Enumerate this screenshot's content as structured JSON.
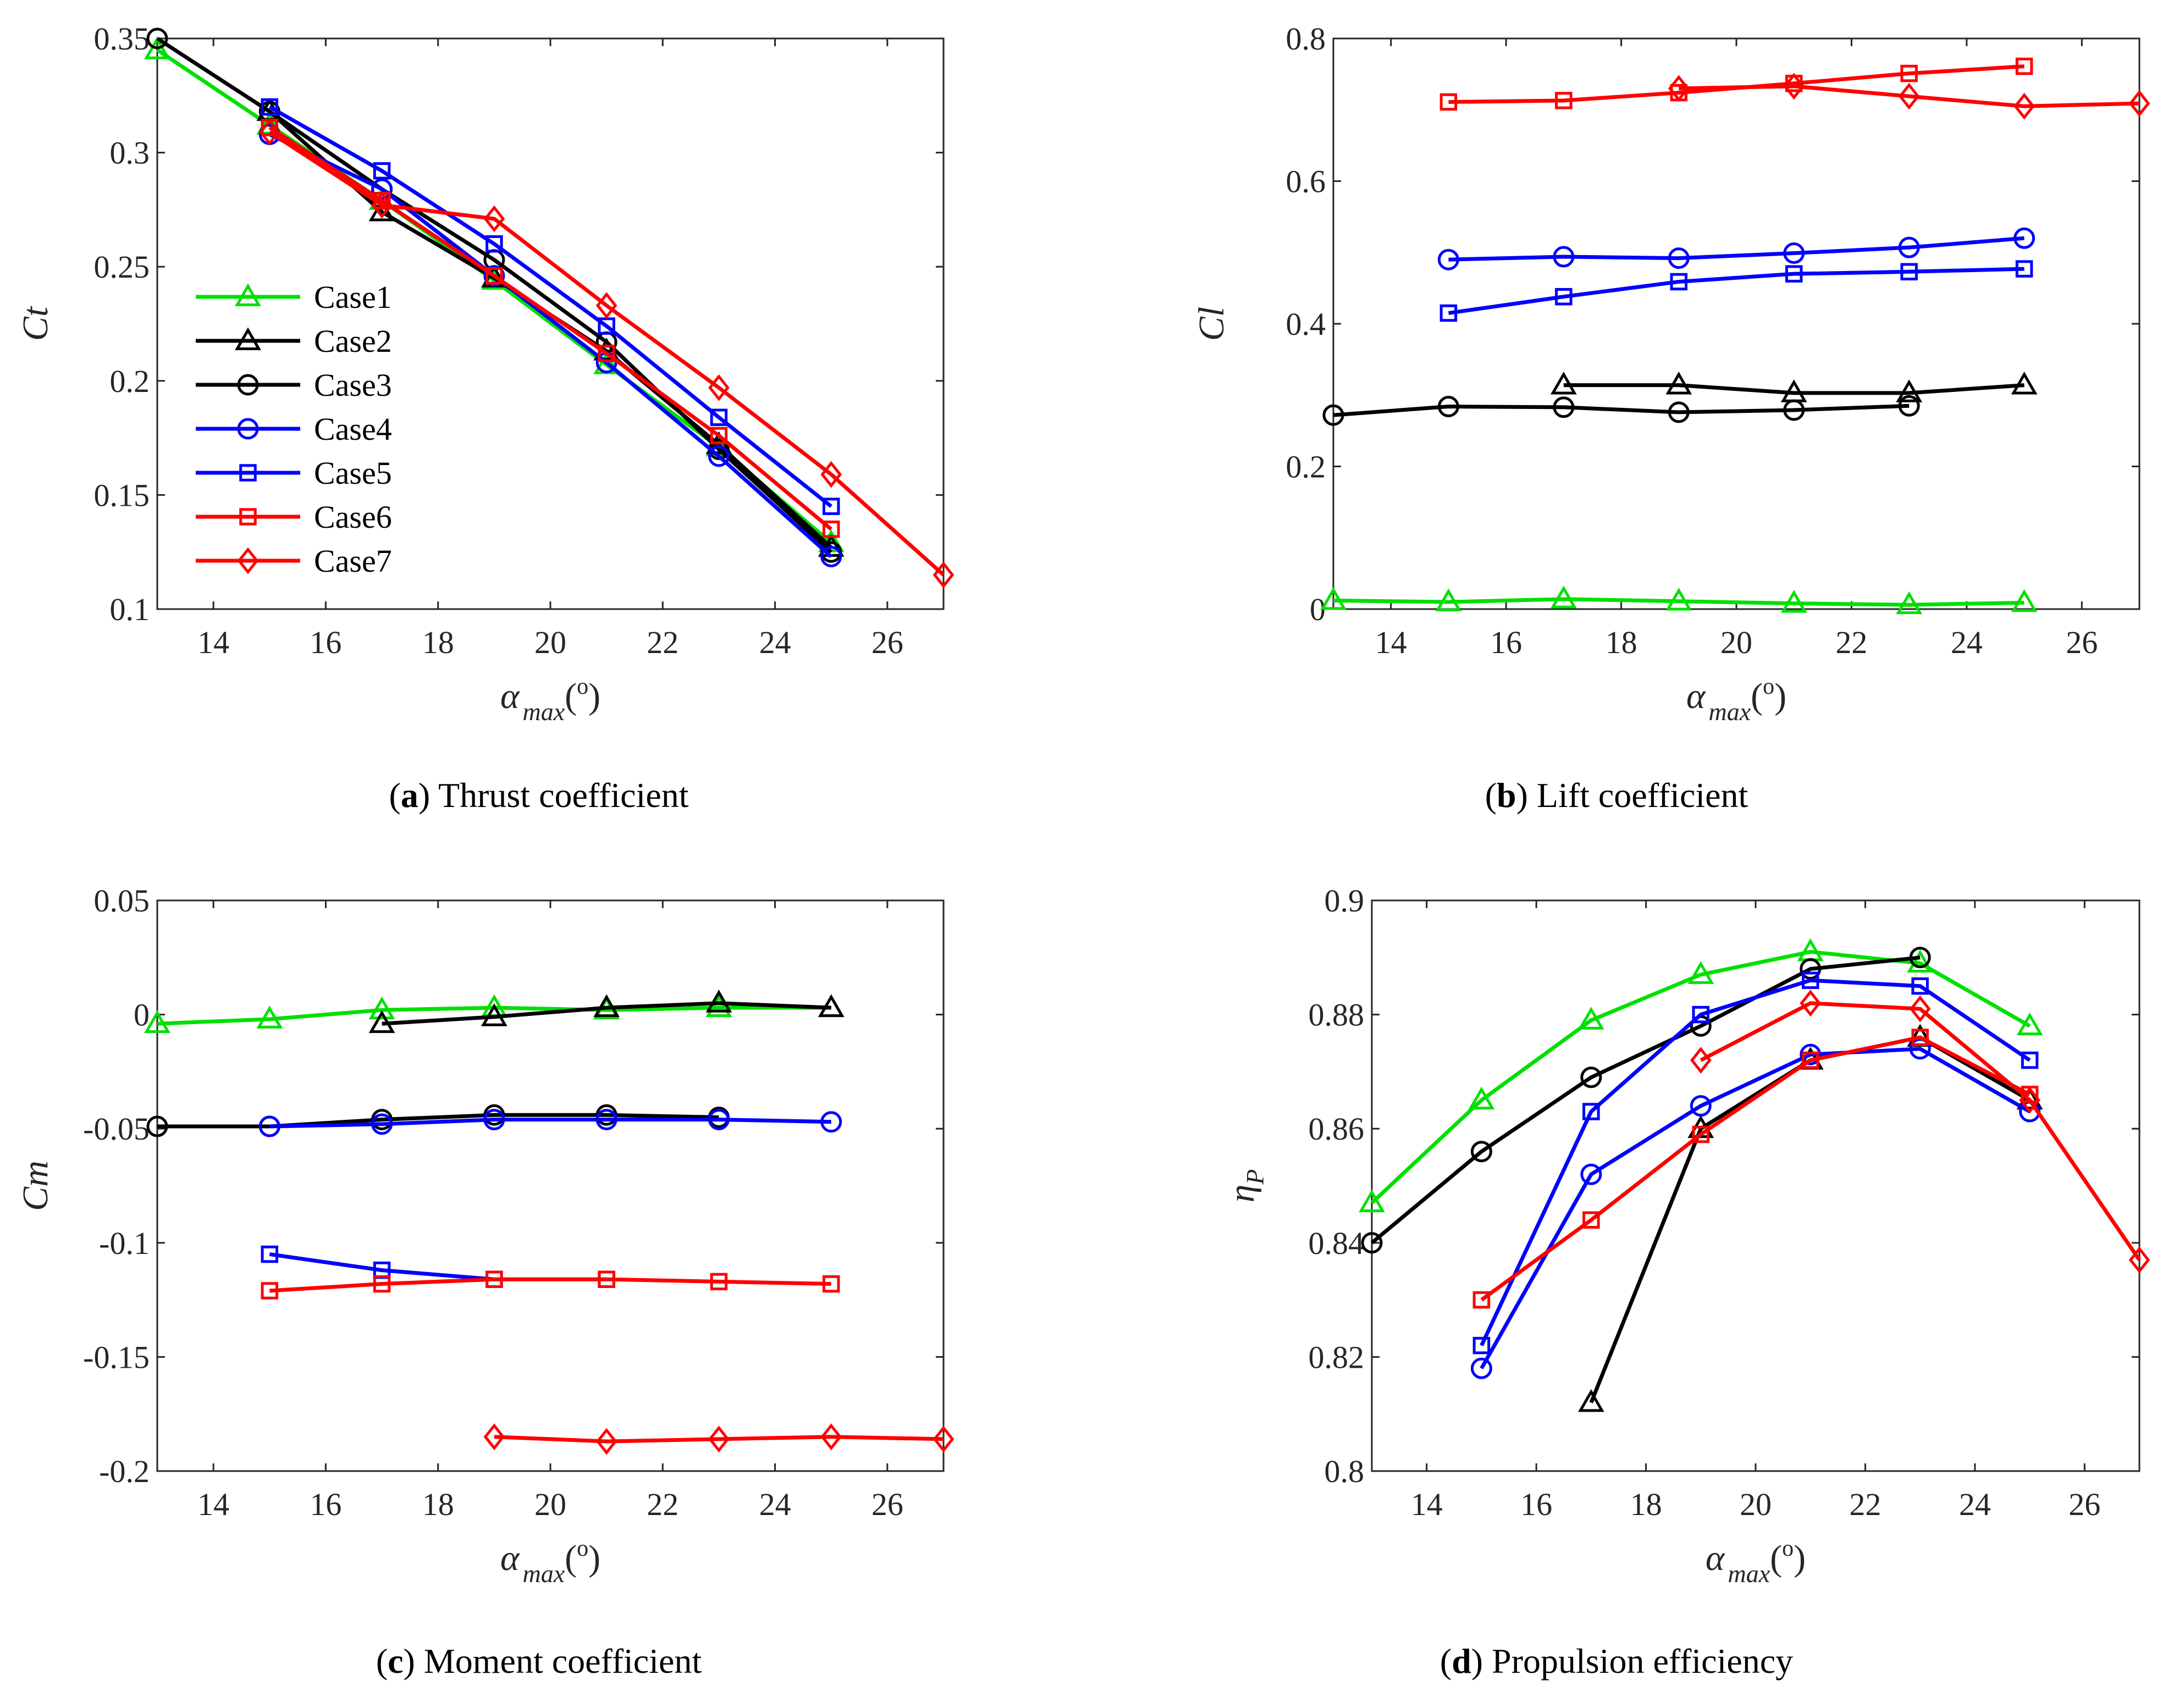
{
  "chart_data": [
    {
      "type": "line",
      "panel": "a",
      "ylabel": "Ct",
      "xlabel_symbol": "α",
      "xlabel_subscript": "max",
      "xlabel_units": "(o)",
      "xlim": [
        13,
        27
      ],
      "ylim": [
        0.1,
        0.35
      ],
      "xticks": [
        14,
        16,
        18,
        20,
        22,
        24,
        26
      ],
      "yticks": [
        0.1,
        0.15,
        0.2,
        0.25,
        0.3,
        0.35
      ],
      "ytick_labels": [
        "0.1",
        "0.15",
        "0.2",
        "0.25",
        "0.3",
        "0.35"
      ],
      "legend": "inside-left",
      "series": [
        {
          "name": "Case1",
          "color": "#00e000",
          "marker": "triangle",
          "x": [
            13,
            15,
            17,
            19,
            21,
            23,
            25
          ],
          "y": [
            0.345,
            0.312,
            0.279,
            0.244,
            0.207,
            0.171,
            0.129
          ]
        },
        {
          "name": "Case2",
          "color": "#000000",
          "marker": "triangle",
          "x": [
            15,
            17,
            19,
            21,
            23,
            25
          ],
          "y": [
            0.318,
            0.274,
            0.245,
            0.213,
            0.172,
            0.127
          ]
        },
        {
          "name": "Case3",
          "color": "#000000",
          "marker": "circle",
          "x": [
            13,
            15,
            17,
            19,
            21,
            23,
            25
          ],
          "y": [
            0.35,
            0.318,
            0.284,
            0.253,
            0.217,
            0.17,
            0.125
          ]
        },
        {
          "name": "Case4",
          "color": "#0000ff",
          "marker": "circle",
          "x": [
            15,
            17,
            19,
            21,
            23,
            25
          ],
          "y": [
            0.308,
            0.284,
            0.246,
            0.208,
            0.167,
            0.123
          ]
        },
        {
          "name": "Case5",
          "color": "#0000ff",
          "marker": "square",
          "x": [
            15,
            17,
            19,
            21,
            23,
            25
          ],
          "y": [
            0.32,
            0.292,
            0.26,
            0.224,
            0.184,
            0.145
          ]
        },
        {
          "name": "Case6",
          "color": "#ff0000",
          "marker": "square",
          "x": [
            15,
            17,
            19,
            21,
            23,
            25
          ],
          "y": [
            0.311,
            0.279,
            0.246,
            0.212,
            0.176,
            0.135
          ]
        },
        {
          "name": "Case7",
          "color": "#ff0000",
          "marker": "diamond",
          "x": [
            15,
            17,
            19,
            21,
            23,
            25,
            27
          ],
          "y": [
            0.309,
            0.277,
            0.271,
            0.233,
            0.197,
            0.159,
            0.115
          ]
        }
      ]
    },
    {
      "type": "line",
      "panel": "b",
      "ylabel": "Cl",
      "xlabel_symbol": "α",
      "xlabel_subscript": "max",
      "xlabel_units": "(o)",
      "xlim": [
        13,
        27
      ],
      "ylim": [
        0,
        0.8
      ],
      "xticks": [
        14,
        16,
        18,
        20,
        22,
        24,
        26
      ],
      "yticks": [
        0,
        0.2,
        0.4,
        0.6,
        0.8
      ],
      "ytick_labels": [
        "0",
        "0.2",
        "0.4",
        "0.6",
        "0.8"
      ],
      "series": [
        {
          "name": "Case1",
          "color": "#00e000",
          "marker": "triangle",
          "x": [
            13,
            15,
            17,
            19,
            21,
            23,
            25
          ],
          "y": [
            0.012,
            0.01,
            0.014,
            0.011,
            0.008,
            0.006,
            0.009
          ]
        },
        {
          "name": "Case2",
          "color": "#000000",
          "marker": "triangle",
          "x": [
            17,
            19,
            21,
            23,
            25
          ],
          "y": [
            0.314,
            0.314,
            0.303,
            0.303,
            0.314
          ]
        },
        {
          "name": "Case3",
          "color": "#000000",
          "marker": "circle",
          "x": [
            13,
            15,
            17,
            19,
            21,
            23
          ],
          "y": [
            0.272,
            0.284,
            0.283,
            0.276,
            0.279,
            0.285
          ]
        },
        {
          "name": "Case4",
          "color": "#0000ff",
          "marker": "circle",
          "x": [
            15,
            17,
            19,
            21,
            23,
            25
          ],
          "y": [
            0.49,
            0.494,
            0.492,
            0.499,
            0.507,
            0.52
          ]
        },
        {
          "name": "Case5",
          "color": "#0000ff",
          "marker": "square",
          "x": [
            15,
            17,
            19,
            21,
            23,
            25
          ],
          "y": [
            0.415,
            0.438,
            0.459,
            0.47,
            0.473,
            0.477
          ]
        },
        {
          "name": "Case6",
          "color": "#ff0000",
          "marker": "square",
          "x": [
            15,
            17,
            19,
            21,
            23,
            25
          ],
          "y": [
            0.711,
            0.713,
            0.724,
            0.737,
            0.751,
            0.761
          ]
        },
        {
          "name": "Case7",
          "color": "#ff0000",
          "marker": "diamond",
          "x": [
            19,
            21,
            23,
            25,
            27
          ],
          "y": [
            0.73,
            0.733,
            0.719,
            0.705,
            0.709
          ]
        }
      ]
    },
    {
      "type": "line",
      "panel": "c",
      "ylabel": "Cm",
      "xlabel_symbol": "α",
      "xlabel_subscript": "max",
      "xlabel_units": "(o)",
      "xlim": [
        13,
        27
      ],
      "ylim": [
        -0.2,
        0.05
      ],
      "xticks": [
        14,
        16,
        18,
        20,
        22,
        24,
        26
      ],
      "yticks": [
        -0.2,
        -0.15,
        -0.1,
        -0.05,
        0,
        0.05
      ],
      "ytick_labels": [
        "-0.2",
        "-0.15",
        "-0.1",
        "-0.05",
        "0",
        "0.05"
      ],
      "series": [
        {
          "name": "Case1",
          "color": "#00e000",
          "marker": "triangle",
          "x": [
            13,
            15,
            17,
            19,
            21,
            23,
            25
          ],
          "y": [
            -0.004,
            -0.002,
            0.002,
            0.003,
            0.002,
            0.003,
            0.003
          ]
        },
        {
          "name": "Case2",
          "color": "#000000",
          "marker": "triangle",
          "x": [
            17,
            19,
            21,
            23,
            25
          ],
          "y": [
            -0.004,
            -0.001,
            0.003,
            0.005,
            0.003
          ]
        },
        {
          "name": "Case3",
          "color": "#000000",
          "marker": "circle",
          "x": [
            13,
            15,
            17,
            19,
            21,
            23
          ],
          "y": [
            -0.049,
            -0.049,
            -0.046,
            -0.044,
            -0.044,
            -0.045
          ]
        },
        {
          "name": "Case4",
          "color": "#0000ff",
          "marker": "circle",
          "x": [
            15,
            17,
            19,
            21,
            23,
            25
          ],
          "y": [
            -0.049,
            -0.048,
            -0.046,
            -0.046,
            -0.046,
            -0.047
          ]
        },
        {
          "name": "Case5",
          "color": "#0000ff",
          "marker": "square",
          "x": [
            15,
            17,
            19,
            21
          ],
          "y": [
            -0.105,
            -0.112,
            -0.116,
            -0.116
          ]
        },
        {
          "name": "Case6",
          "color": "#ff0000",
          "marker": "square",
          "x": [
            15,
            17,
            19,
            21,
            23,
            25
          ],
          "y": [
            -0.121,
            -0.118,
            -0.116,
            -0.116,
            -0.117,
            -0.118
          ]
        },
        {
          "name": "Case7",
          "color": "#ff0000",
          "marker": "diamond",
          "x": [
            19,
            21,
            23,
            25,
            27
          ],
          "y": [
            -0.185,
            -0.187,
            -0.186,
            -0.185,
            -0.186
          ]
        }
      ]
    },
    {
      "type": "line",
      "panel": "d",
      "ylabel_symbol": "η",
      "ylabel_subscript": "P",
      "xlabel_symbol": "α",
      "xlabel_subscript": "max",
      "xlabel_units": "(o)",
      "xlim": [
        13,
        27
      ],
      "ylim": [
        0.8,
        0.9
      ],
      "xticks": [
        14,
        16,
        18,
        20,
        22,
        24,
        26
      ],
      "yticks": [
        0.8,
        0.82,
        0.84,
        0.86,
        0.88,
        0.9
      ],
      "ytick_labels": [
        "0.8",
        "0.82",
        "0.84",
        "0.86",
        "0.88",
        "0.9"
      ],
      "series": [
        {
          "name": "Case1",
          "color": "#00e000",
          "marker": "triangle",
          "x": [
            13,
            15,
            17,
            19,
            21,
            23,
            25
          ],
          "y": [
            0.847,
            0.865,
            0.879,
            0.887,
            0.891,
            0.889,
            0.878
          ]
        },
        {
          "name": "Case2",
          "color": "#000000",
          "marker": "triangle",
          "x": [
            17,
            19,
            21,
            23,
            25
          ],
          "y": [
            0.812,
            0.86,
            0.872,
            0.876,
            0.865
          ]
        },
        {
          "name": "Case3",
          "color": "#000000",
          "marker": "circle",
          "x": [
            13,
            15,
            17,
            19,
            21,
            23
          ],
          "y": [
            0.84,
            0.856,
            0.869,
            0.878,
            0.888,
            0.89
          ]
        },
        {
          "name": "Case4",
          "color": "#0000ff",
          "marker": "circle",
          "x": [
            15,
            17,
            19,
            21,
            23,
            25
          ],
          "y": [
            0.818,
            0.852,
            0.864,
            0.873,
            0.874,
            0.863
          ]
        },
        {
          "name": "Case5",
          "color": "#0000ff",
          "marker": "square",
          "x": [
            15,
            17,
            19,
            21,
            23,
            25
          ],
          "y": [
            0.822,
            0.863,
            0.88,
            0.886,
            0.885,
            0.872
          ]
        },
        {
          "name": "Case6",
          "color": "#ff0000",
          "marker": "square",
          "x": [
            15,
            17,
            19,
            21,
            23,
            25
          ],
          "y": [
            0.83,
            0.844,
            0.859,
            0.872,
            0.876,
            0.866
          ]
        },
        {
          "name": "Case7",
          "color": "#ff0000",
          "marker": "diamond",
          "x": [
            19,
            21,
            23,
            25,
            27
          ],
          "y": [
            0.872,
            0.882,
            0.881,
            0.865,
            0.837
          ]
        }
      ]
    }
  ],
  "captions": {
    "a": {
      "tag": "a",
      "text": "Thrust coefficient"
    },
    "b": {
      "tag": "b",
      "text": "Lift coefficient"
    },
    "c": {
      "tag": "c",
      "text": "Moment coefficient"
    },
    "d": {
      "tag": "d",
      "text": "Propulsion efficiency"
    }
  }
}
